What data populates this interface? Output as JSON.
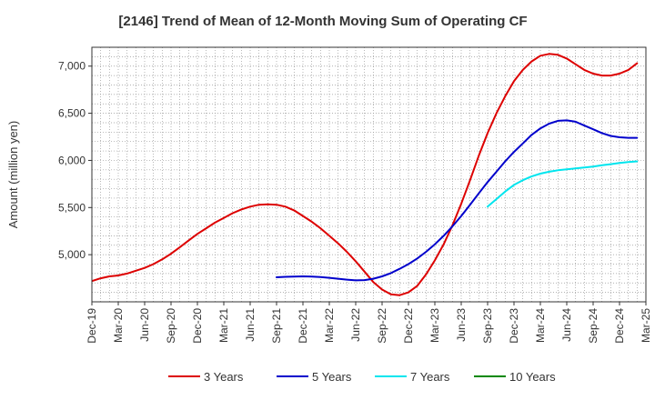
{
  "chart_data": {
    "type": "line",
    "title": "[2146]  Trend of Mean of 12-Month Moving Sum of Operating CF",
    "xlabel": "",
    "ylabel": "Amount (million yen)",
    "ylim": [
      4500,
      7200
    ],
    "yticks": [
      5000,
      5500,
      6000,
      6500,
      7000
    ],
    "ytick_labels": [
      "5,000",
      "5,500",
      "6,000",
      "6,500",
      "7,000"
    ],
    "grid": true,
    "legend_position": "bottom",
    "x_months": [
      "Dec-19",
      "Jan-20",
      "Feb-20",
      "Mar-20",
      "Apr-20",
      "May-20",
      "Jun-20",
      "Jul-20",
      "Aug-20",
      "Sep-20",
      "Oct-20",
      "Nov-20",
      "Dec-20",
      "Jan-21",
      "Feb-21",
      "Mar-21",
      "Apr-21",
      "May-21",
      "Jun-21",
      "Jul-21",
      "Aug-21",
      "Sep-21",
      "Oct-21",
      "Nov-21",
      "Dec-21",
      "Jan-22",
      "Feb-22",
      "Mar-22",
      "Apr-22",
      "May-22",
      "Jun-22",
      "Jul-22",
      "Aug-22",
      "Sep-22",
      "Oct-22",
      "Nov-22",
      "Dec-22",
      "Jan-23",
      "Feb-23",
      "Mar-23",
      "Apr-23",
      "May-23",
      "Jun-23",
      "Jul-23",
      "Aug-23",
      "Sep-23",
      "Oct-23",
      "Nov-23",
      "Dec-23",
      "Jan-24",
      "Feb-24",
      "Mar-24",
      "Apr-24",
      "May-24",
      "Jun-24",
      "Jul-24",
      "Aug-24",
      "Sep-24",
      "Oct-24",
      "Nov-24",
      "Dec-24",
      "Jan-25",
      "Feb-25",
      "Mar-25"
    ],
    "x_tick_labels": [
      "Dec-19",
      "Mar-20",
      "Jun-20",
      "Sep-20",
      "Dec-20",
      "Mar-21",
      "Jun-21",
      "Sep-21",
      "Dec-21",
      "Mar-22",
      "Jun-22",
      "Sep-22",
      "Dec-22",
      "Mar-23",
      "Jun-23",
      "Sep-23",
      "Dec-23",
      "Mar-24",
      "Jun-24",
      "Sep-24",
      "Dec-24",
      "Mar-25"
    ],
    "series": [
      {
        "name": "3 Years",
        "color": "#dd0000",
        "start_month": "Dec-19",
        "values": [
          4720,
          4750,
          4770,
          4780,
          4800,
          4830,
          4860,
          4900,
          4950,
          5010,
          5080,
          5150,
          5220,
          5280,
          5340,
          5390,
          5440,
          5480,
          5510,
          5530,
          5535,
          5530,
          5510,
          5470,
          5410,
          5350,
          5280,
          5200,
          5120,
          5030,
          4930,
          4820,
          4710,
          4630,
          4580,
          4570,
          4600,
          4670,
          4790,
          4940,
          5110,
          5310,
          5540,
          5790,
          6050,
          6290,
          6500,
          6680,
          6840,
          6960,
          7050,
          7110,
          7130,
          7120,
          7080,
          7020,
          6960,
          6920,
          6900,
          6900,
          6920,
          6960,
          7030
        ],
        "x_offset": 0
      },
      {
        "name": "5 Years",
        "color": "#0000cc",
        "start_month": "Sep-21",
        "values": [
          4760,
          4765,
          4768,
          4770,
          4768,
          4763,
          4755,
          4745,
          4735,
          4728,
          4730,
          4745,
          4770,
          4805,
          4850,
          4900,
          4960,
          5030,
          5110,
          5200,
          5300,
          5410,
          5530,
          5650,
          5770,
          5880,
          5990,
          6090,
          6180,
          6270,
          6340,
          6390,
          6420,
          6425,
          6410,
          6370,
          6330,
          6290,
          6260,
          6245,
          6240,
          6240
        ],
        "x_offset": 21
      },
      {
        "name": "7 Years",
        "color": "#00e5ee",
        "start_month": "Sep-23",
        "values": [
          5510,
          5590,
          5670,
          5740,
          5790,
          5830,
          5860,
          5880,
          5895,
          5905,
          5915,
          5925,
          5935,
          5948,
          5960,
          5972,
          5982,
          5990
        ],
        "x_offset": 45
      },
      {
        "name": "10 Years",
        "color": "#008800",
        "start_month": "",
        "values": [],
        "x_offset": 0
      }
    ]
  }
}
